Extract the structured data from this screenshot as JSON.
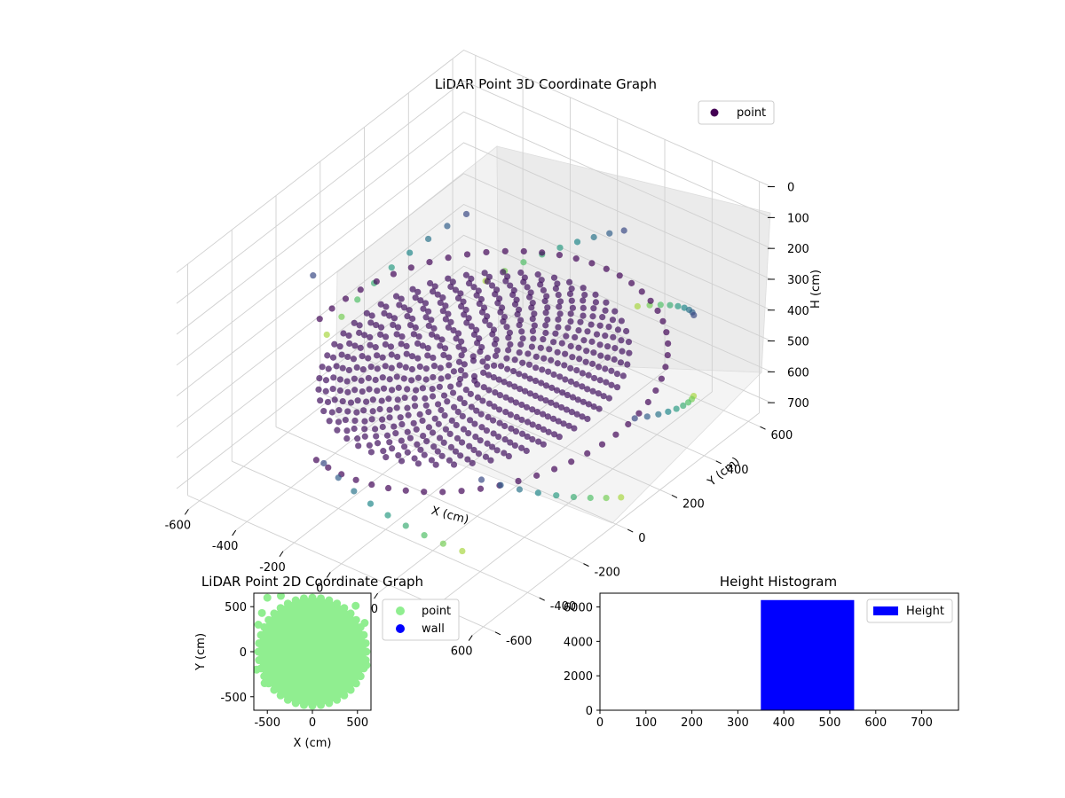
{
  "chart_data": [
    {
      "type": "scatter",
      "title": "LiDAR Point 3D Coordinate Graph",
      "xlabel": "X (cm)",
      "ylabel": "Y (cm)",
      "zlabel": "H (cm)",
      "xlim": [
        -650,
        650
      ],
      "ylim": [
        -650,
        650
      ],
      "zlim": [
        0,
        750
      ],
      "z_inverted": true,
      "x_ticks": [
        -600,
        -400,
        -200,
        0,
        200,
        400,
        600
      ],
      "y_ticks": [
        -600,
        -400,
        -200,
        0,
        200,
        400,
        600
      ],
      "z_ticks": [
        0,
        100,
        200,
        300,
        400,
        500,
        600,
        700
      ],
      "colormap": "viridis",
      "legend": [
        "point"
      ],
      "legend_position": "top-right",
      "grid": true,
      "series": [
        {
          "name": "point",
          "components": [
            {
              "shape": "filled disk",
              "center": [
                0,
                0
              ],
              "radius": 480,
              "height": 450
            },
            {
              "shape": "ring",
              "radius": 600,
              "height": 460
            },
            {
              "shape": "wall ring",
              "radius": 680,
              "height_range": [
                300,
                650
              ]
            }
          ]
        }
      ]
    },
    {
      "type": "scatter",
      "title": "LiDAR Point 2D Coordinate Graph",
      "xlabel": "X (cm)",
      "ylabel": "Y (cm)",
      "xlim": [
        -650,
        650
      ],
      "ylim": [
        -650,
        650
      ],
      "x_ticks": [
        -500,
        0,
        500
      ],
      "y_ticks": [
        -500,
        0,
        500
      ],
      "legend_position": "right",
      "series": [
        {
          "name": "point",
          "color": "#90ee90",
          "shape": "filled disk",
          "radius": 600
        },
        {
          "name": "wall",
          "color": "#0000ff",
          "points": []
        }
      ]
    },
    {
      "type": "bar",
      "title": "Height Histogram",
      "xlim": [
        0,
        780
      ],
      "ylim": [
        0,
        6800
      ],
      "x_ticks": [
        0,
        100,
        200,
        300,
        400,
        500,
        600,
        700
      ],
      "y_ticks": [
        0,
        2000,
        4000,
        6000
      ],
      "legend_position": "top-right",
      "series": [
        {
          "name": "Height",
          "color": "#0000ff",
          "bins": [
            {
              "x0": 350,
              "x1": 553,
              "count": 6400
            }
          ]
        }
      ]
    }
  ]
}
